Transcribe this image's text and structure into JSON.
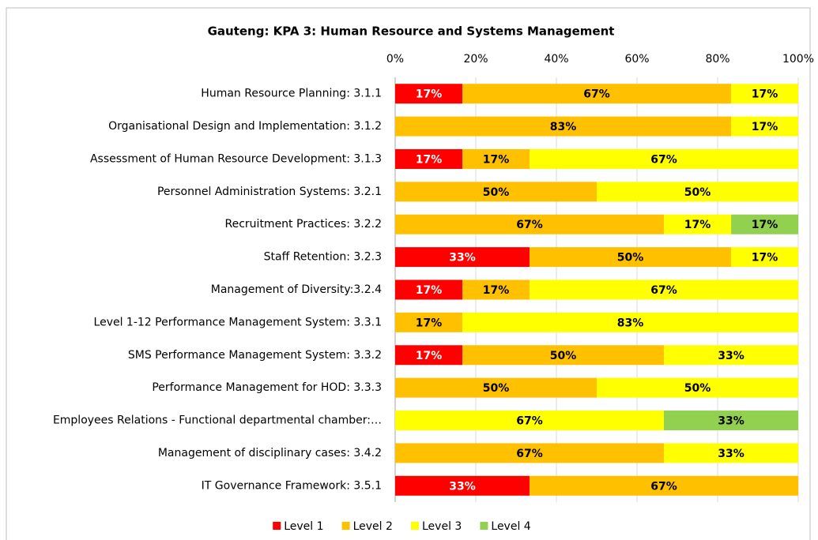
{
  "chart_data": {
    "type": "stacked_hbar_percent",
    "title": "Gauteng: KPA 3: Human Resource and Systems Management",
    "categories": [
      "Human Resource Planning: 3.1.1",
      "Organisational Design and Implementation: 3.1.2",
      "Assessment of Human Resource Development: 3.1.3",
      "Personnel Administration Systems: 3.2.1",
      "Recruitment Practices: 3.2.2",
      "Staff Retention: 3.2.3",
      "Management of Diversity:3.2.4",
      "Level 1-12 Performance Management System: 3.3.1",
      "SMS Performance Management System: 3.3.2",
      "Performance Management for HOD: 3.3.3",
      "Employees Relations - Functional departmental chamber:…",
      "Management of disciplinary cases: 3.4.2",
      "IT Governance Framework: 3.5.1"
    ],
    "series": [
      {
        "name": "Level 1",
        "color": "#ff0000",
        "label_color": "#ffffff",
        "values": [
          16.67,
          null,
          16.67,
          null,
          null,
          33.33,
          16.67,
          null,
          16.67,
          null,
          null,
          null,
          33.33
        ],
        "value_labels": [
          "17%",
          null,
          "17%",
          null,
          null,
          "33%",
          "17%",
          null,
          "17%",
          null,
          null,
          null,
          "33%"
        ]
      },
      {
        "name": "Level 2",
        "color": "#ffc000",
        "label_color": "#000000",
        "values": [
          66.67,
          83.33,
          16.67,
          50,
          66.67,
          50,
          16.67,
          16.67,
          50,
          50,
          null,
          66.67,
          66.67
        ],
        "value_labels": [
          "67%",
          "83%",
          "17%",
          "50%",
          "67%",
          "50%",
          "17%",
          "17%",
          "50%",
          "50%",
          null,
          "67%",
          "67%"
        ]
      },
      {
        "name": "Level 3",
        "color": "#ffff00",
        "label_color": "#000000",
        "values": [
          16.67,
          16.67,
          66.67,
          50,
          16.67,
          16.67,
          66.67,
          83.33,
          33.33,
          50,
          66.67,
          33.33,
          null
        ],
        "value_labels": [
          "17%",
          "17%",
          "67%",
          "50%",
          "17%",
          "17%",
          "67%",
          "83%",
          "33%",
          "50%",
          "67%",
          "33%",
          null
        ]
      },
      {
        "name": "Level 4",
        "color": "#92d050",
        "label_color": "#000000",
        "values": [
          null,
          null,
          null,
          null,
          16.67,
          null,
          null,
          null,
          null,
          null,
          33.33,
          null,
          null
        ],
        "value_labels": [
          null,
          null,
          null,
          null,
          "17%",
          null,
          null,
          null,
          null,
          null,
          "33%",
          null,
          null
        ]
      }
    ],
    "xlim": [
      0,
      100
    ],
    "xticks": [
      {
        "value": 0,
        "label": "0%"
      },
      {
        "value": 20,
        "label": "20%"
      },
      {
        "value": 40,
        "label": "40%"
      },
      {
        "value": 60,
        "label": "60%"
      },
      {
        "value": 80,
        "label": "80%"
      },
      {
        "value": 100,
        "label": "100%"
      }
    ],
    "grid": true,
    "legend": "bottom"
  }
}
